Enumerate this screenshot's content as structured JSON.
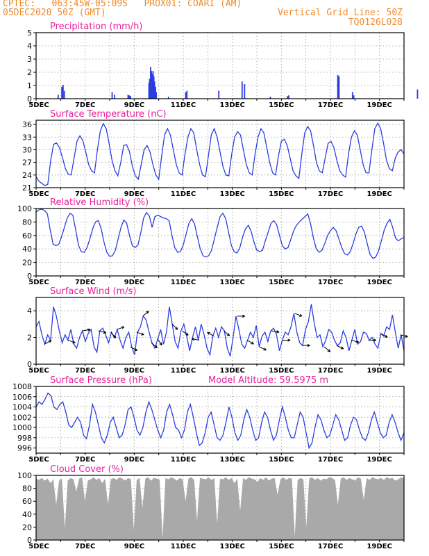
{
  "header": {
    "line1": "CPTEC:   063:45W-05:09S   PROX01: COARI (AM)",
    "line2": "05DEC2020 50Z (GMT)",
    "right1": "Vertical Grid Line: 50Z",
    "right2": "TQ0126L028"
  },
  "colors": {
    "header": "#f08a2a",
    "title": "#e8209c",
    "series": "#2a3de0",
    "cloud_fill": "#a9a9a9",
    "wind_arrow": "#000000"
  },
  "x_ticks": [
    "5DEC",
    "7DEC",
    "9DEC",
    "11DEC",
    "13DEC",
    "15DEC",
    "17DEC",
    "19DEC"
  ],
  "chart_data": [
    {
      "type": "bar",
      "title": "Precipitation (mm/h)",
      "ylim": [
        0,
        5
      ],
      "yticks": [
        0,
        1,
        2,
        3,
        4,
        5
      ],
      "grid": true,
      "x_unit": "days since 5DEC",
      "points": [
        [
          0.9,
          0.3
        ],
        [
          1.05,
          0.9
        ],
        [
          1.1,
          1.05
        ],
        [
          1.15,
          0.6
        ],
        [
          3.1,
          0.5
        ],
        [
          3.2,
          0.3
        ],
        [
          3.75,
          0.3
        ],
        [
          3.8,
          0.25
        ],
        [
          3.85,
          0.2
        ],
        [
          4.6,
          1.2
        ],
        [
          4.63,
          1.5
        ],
        [
          4.67,
          2.4
        ],
        [
          4.7,
          2.1
        ],
        [
          4.73,
          1.9
        ],
        [
          4.77,
          2.1
        ],
        [
          4.8,
          1.7
        ],
        [
          4.83,
          1.3
        ],
        [
          4.87,
          0.9
        ],
        [
          4.9,
          0.5
        ],
        [
          5.4,
          0.15
        ],
        [
          6.1,
          0.5
        ],
        [
          6.15,
          0.6
        ],
        [
          7.45,
          0.6
        ],
        [
          8.4,
          1.3
        ],
        [
          8.5,
          1.1
        ],
        [
          9.55,
          0.15
        ],
        [
          10.25,
          0.2
        ],
        [
          10.3,
          0.25
        ],
        [
          12.3,
          1.8
        ],
        [
          12.35,
          1.7
        ],
        [
          12.9,
          0.5
        ],
        [
          12.95,
          0.25
        ],
        [
          15.55,
          0.7
        ]
      ]
    },
    {
      "type": "line",
      "title": "Surface Temperature (nC)",
      "ylim": [
        21,
        37
      ],
      "yticks": [
        21,
        24,
        27,
        30,
        33,
        36
      ],
      "grid": true,
      "y": [
        23.6,
        22.5,
        22.0,
        21.5,
        21.8,
        27.5,
        31.3,
        31.6,
        30.5,
        28.2,
        25.6,
        24.2,
        24.0,
        28.0,
        32.0,
        33.3,
        32.2,
        29.5,
        26.5,
        25.0,
        24.5,
        30.0,
        34.5,
        36.2,
        35.0,
        31.5,
        27.5,
        25.0,
        23.8,
        27.0,
        31.0,
        31.2,
        29.5,
        26.0,
        23.8,
        23.0,
        26.5,
        30.0,
        31.0,
        29.5,
        26.5,
        24.0,
        23.0,
        28.5,
        33.5,
        35.0,
        33.5,
        30.0,
        26.5,
        24.5,
        24.0,
        29.0,
        33.0,
        35.0,
        34.0,
        30.0,
        26.5,
        24.0,
        23.6,
        28.5,
        33.5,
        35.0,
        33.0,
        29.5,
        26.0,
        24.0,
        23.8,
        29.0,
        33.0,
        34.3,
        33.5,
        30.0,
        26.5,
        24.5,
        24.0,
        29.0,
        33.0,
        35.0,
        34.0,
        30.5,
        27.0,
        24.5,
        24.0,
        28.5,
        32.0,
        32.5,
        31.0,
        28.0,
        25.0,
        23.8,
        23.2,
        29.0,
        34.0,
        35.5,
        34.5,
        31.0,
        27.0,
        25.0,
        24.5,
        28.0,
        31.5,
        32.0,
        30.5,
        27.5,
        25.0,
        24.0,
        23.5,
        29.0,
        33.0,
        34.5,
        33.5,
        30.0,
        26.5,
        24.5,
        24.5,
        30.0,
        35.0,
        36.3,
        35.0,
        31.5,
        27.5,
        25.5,
        25.0,
        28.0,
        29.5,
        30.0,
        29.0
      ]
    },
    {
      "type": "line",
      "title": "Relative Humidity (%)",
      "ylim": [
        0,
        100
      ],
      "yticks": [
        0,
        20,
        40,
        60,
        80,
        100
      ],
      "grid": true,
      "y": [
        95,
        98,
        99,
        97,
        92,
        68,
        47,
        45,
        47,
        58,
        72,
        86,
        93,
        90,
        68,
        45,
        36,
        35,
        42,
        55,
        70,
        80,
        82,
        70,
        50,
        35,
        29,
        30,
        38,
        55,
        72,
        83,
        78,
        60,
        45,
        42,
        46,
        64,
        86,
        94,
        89,
        72,
        88,
        90,
        88,
        86,
        85,
        82,
        60,
        42,
        35,
        36,
        46,
        62,
        78,
        85,
        77,
        58,
        40,
        30,
        28,
        30,
        38,
        55,
        72,
        88,
        93,
        85,
        65,
        45,
        36,
        34,
        42,
        58,
        70,
        75,
        66,
        50,
        38,
        36,
        38,
        52,
        65,
        78,
        82,
        76,
        60,
        45,
        40,
        42,
        54,
        67,
        75,
        80,
        84,
        88,
        92,
        77,
        56,
        40,
        35,
        38,
        48,
        60,
        67,
        72,
        67,
        55,
        42,
        33,
        31,
        36,
        48,
        62,
        72,
        74,
        65,
        48,
        32,
        26,
        28,
        37,
        52,
        68,
        78,
        84,
        72,
        56,
        52,
        55,
        57
      ]
    },
    {
      "type": "line",
      "title": "Surface Wind (m/s)",
      "ylim": [
        0,
        5
      ],
      "yticks": [
        0,
        2,
        4
      ],
      "grid": true,
      "y": [
        2.8,
        3.2,
        2.2,
        1.5,
        2.2,
        1.8,
        4.3,
        3.6,
        2.5,
        1.6,
        2.2,
        1.8,
        2.6,
        1.5,
        1.2,
        2.0,
        2.5,
        1.7,
        2.3,
        2.6,
        1.3,
        0.9,
        2.5,
        2.7,
        2.2,
        1.6,
        2.4,
        2.0,
        2.6,
        1.8,
        1.2,
        2.0,
        2.4,
        1.3,
        0.7,
        2.4,
        2.8,
        3.6,
        3.3,
        2.4,
        1.6,
        1.2,
        1.9,
        2.6,
        1.5,
        2.4,
        4.3,
        3.0,
        1.7,
        1.2,
        2.5,
        3.0,
        2.1,
        1.0,
        2.0,
        2.8,
        1.8,
        3.0,
        2.2,
        1.2,
        0.7,
        2.1,
        2.7,
        2.0,
        2.8,
        2.5,
        1.2,
        0.6,
        2.0,
        3.6,
        2.6,
        1.5,
        1.2,
        1.8,
        2.4,
        2.0,
        2.9,
        1.3,
        2.1,
        2.4,
        1.7,
        2.5,
        2.7,
        2.2,
        1.0,
        1.8,
        2.4,
        2.2,
        2.8,
        3.8,
        2.4,
        1.6,
        1.4,
        2.6,
        3.2,
        4.5,
        3.1,
        2.0,
        2.2,
        1.3,
        1.8,
        2.6,
        2.4,
        1.8,
        1.4,
        1.6,
        2.5,
        2.0,
        1.0,
        1.8,
        2.6,
        1.5,
        1.7,
        2.4,
        2.3,
        1.8,
        2.0,
        1.5,
        1.2,
        2.3,
        2.1,
        2.8,
        2.6,
        3.7,
        2.4,
        1.2,
        2.2,
        1.0
      ],
      "arrows": [
        [
          0.35,
          30
        ],
        [
          1.3,
          -20
        ],
        [
          1.9,
          10
        ],
        [
          2.55,
          -15
        ],
        [
          3.05,
          -50
        ],
        [
          3.3,
          20
        ],
        [
          3.85,
          -30
        ],
        [
          4.1,
          -20
        ],
        [
          4.35,
          40
        ],
        [
          4.7,
          -40
        ],
        [
          4.95,
          -55
        ],
        [
          5.55,
          -45
        ],
        [
          5.95,
          -35
        ],
        [
          6.65,
          170
        ],
        [
          7.25,
          150
        ],
        [
          7.65,
          -40
        ],
        [
          8.2,
          0
        ],
        [
          8.6,
          -30
        ],
        [
          9.1,
          -25
        ],
        [
          9.6,
          -10
        ],
        [
          10.05,
          0
        ],
        [
          10.55,
          -20
        ],
        [
          10.85,
          0
        ],
        [
          11.75,
          -40
        ],
        [
          12.25,
          -25
        ],
        [
          12.85,
          -15
        ],
        [
          13.55,
          0
        ],
        [
          14.05,
          -30
        ],
        [
          14.85,
          -15
        ]
      ]
    },
    {
      "type": "line",
      "title": "Surface Pressure (hPa)",
      "annotation": "Model Altitude: 59.5975 m",
      "ylim": [
        995,
        1008
      ],
      "yticks": [
        996,
        998,
        1000,
        1002,
        1004,
        1006,
        1008
      ],
      "grid": true,
      "y": [
        1004.0,
        1005.0,
        1004.5,
        1005.5,
        1006.7,
        1006.2,
        1004.0,
        1003.5,
        1004.5,
        1005.0,
        1003.0,
        1000.5,
        1000.0,
        1001.0,
        1002.0,
        1001.0,
        998.5,
        997.8,
        1000.5,
        1004.5,
        1003.0,
        1000.5,
        998.0,
        997.0,
        998.5,
        1001.0,
        1002.0,
        1000.0,
        998.0,
        998.5,
        1000.5,
        1003.5,
        1004.0,
        1002.0,
        999.5,
        998.5,
        1000.0,
        1003.0,
        1005.0,
        1003.5,
        1001.5,
        999.5,
        998.0,
        999.5,
        1003.0,
        1004.5,
        1002.5,
        1000.0,
        999.5,
        998.0,
        999.5,
        1003.0,
        1004.5,
        1002.0,
        999.0,
        996.5,
        997.0,
        999.0,
        1002.0,
        1003.0,
        1000.5,
        998.0,
        997.5,
        998.5,
        1001.0,
        1004.0,
        1002.0,
        999.0,
        997.5,
        998.5,
        1001.5,
        1003.5,
        1002.0,
        999.5,
        997.5,
        998.0,
        1001.0,
        1003.0,
        1002.0,
        999.5,
        997.5,
        998.5,
        1001.5,
        1004.0,
        1002.0,
        999.5,
        998.0,
        998.0,
        1000.5,
        1003.0,
        1002.0,
        999.0,
        996.0,
        997.0,
        1000.0,
        1002.5,
        1001.5,
        999.5,
        998.0,
        998.5,
        1000.5,
        1002.5,
        1001.5,
        999.5,
        997.5,
        998.0,
        1000.5,
        1002.0,
        1001.5,
        999.5,
        998.0,
        997.5,
        999.0,
        1001.5,
        1003.0,
        1001.0,
        999.0,
        998.0,
        998.5,
        1001.0,
        1002.5,
        1001.0,
        999.0,
        997.5,
        999.0
      ]
    },
    {
      "type": "area",
      "title": "Cloud Cover (%)",
      "ylim": [
        0,
        100
      ],
      "yticks": [
        0,
        20,
        40,
        60,
        80,
        100
      ],
      "grid": true,
      "y": [
        95,
        93,
        96,
        92,
        95,
        88,
        94,
        55,
        92,
        95,
        18,
        92,
        96,
        94,
        75,
        95,
        97,
        60,
        92,
        94,
        97,
        93,
        96,
        88,
        95,
        55,
        94,
        96,
        93,
        97,
        95,
        92,
        96,
        94,
        15,
        93,
        96,
        50,
        95,
        97,
        92,
        96,
        95,
        93,
        3,
        96,
        94,
        97,
        95,
        92,
        96,
        94,
        60,
        95,
        97,
        93,
        30,
        96,
        95,
        94,
        97,
        93,
        96,
        25,
        95,
        94,
        97,
        93,
        96,
        88,
        95,
        45,
        96,
        93,
        97,
        95,
        94,
        90,
        96,
        93,
        97,
        92,
        95,
        96,
        70,
        94,
        97,
        93,
        96,
        95,
        6,
        93,
        96,
        94,
        20,
        95,
        97,
        93,
        96,
        92,
        95,
        94,
        97,
        96,
        93,
        55,
        95,
        97,
        93,
        96,
        94,
        92,
        97,
        95,
        62,
        96,
        93,
        97,
        95,
        94,
        96,
        93,
        97,
        95,
        96,
        92,
        94,
        97,
        95
      ]
    }
  ]
}
